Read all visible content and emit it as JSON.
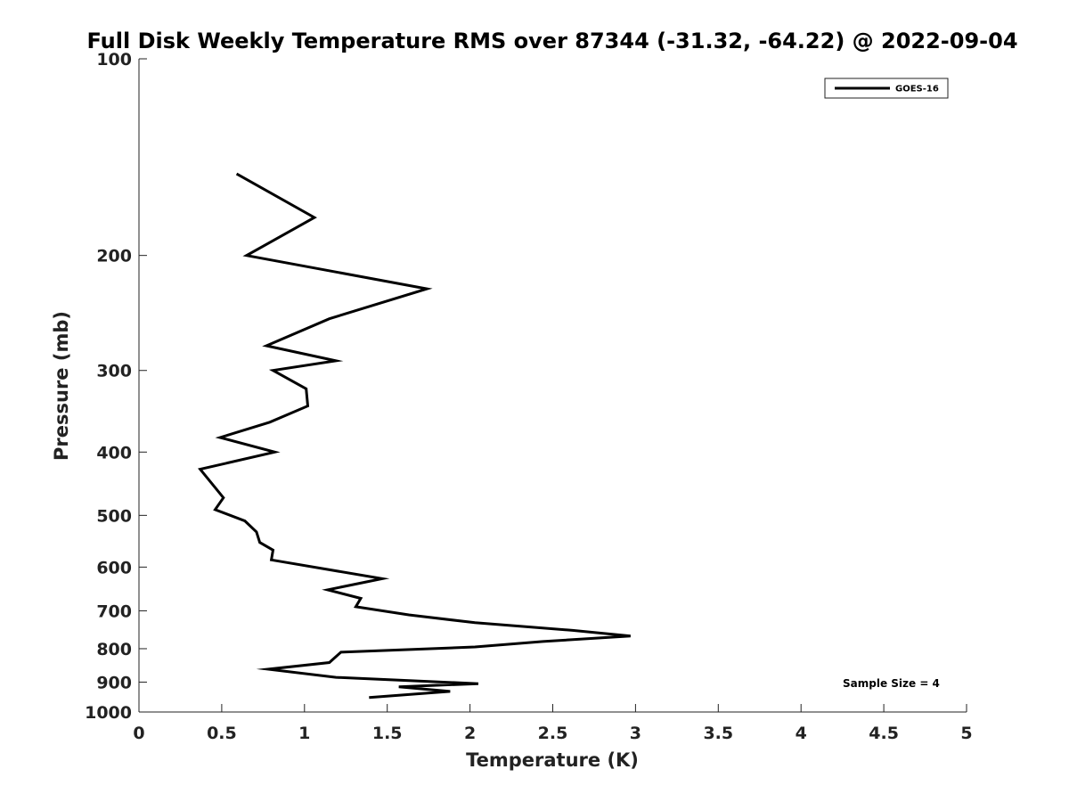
{
  "chart_data": {
    "type": "line",
    "title": "Full Disk Weekly Temperature RMS over 87344 (-31.32, -64.22) @ 2022-09-04",
    "xlabel": "Temperature (K)",
    "ylabel": "Pressure (mb)",
    "xlim": [
      0,
      5
    ],
    "ylim": [
      100,
      1000
    ],
    "y_scale": "log",
    "y_reversed": true,
    "grid": false,
    "legend_position": "top-right",
    "x_ticks": [
      "0",
      "0.5",
      "1",
      "1.5",
      "2",
      "2.5",
      "3",
      "3.5",
      "4",
      "4.5",
      "5"
    ],
    "y_ticks": [
      "100",
      "200",
      "300",
      "400",
      "500",
      "600",
      "700",
      "800",
      "900",
      "1000"
    ],
    "series": [
      {
        "name": "GOES-16",
        "color": "#000000",
        "points": [
          {
            "x": 0.59,
            "y": 150
          },
          {
            "x": 1.06,
            "y": 175
          },
          {
            "x": 0.65,
            "y": 200
          },
          {
            "x": 1.74,
            "y": 225
          },
          {
            "x": 1.15,
            "y": 250
          },
          {
            "x": 0.77,
            "y": 275
          },
          {
            "x": 1.19,
            "y": 290
          },
          {
            "x": 0.81,
            "y": 300
          },
          {
            "x": 1.01,
            "y": 320
          },
          {
            "x": 1.02,
            "y": 340
          },
          {
            "x": 0.79,
            "y": 360
          },
          {
            "x": 0.49,
            "y": 380
          },
          {
            "x": 0.82,
            "y": 400
          },
          {
            "x": 0.37,
            "y": 425
          },
          {
            "x": 0.45,
            "y": 450
          },
          {
            "x": 0.51,
            "y": 470
          },
          {
            "x": 0.46,
            "y": 490
          },
          {
            "x": 0.64,
            "y": 510
          },
          {
            "x": 0.71,
            "y": 530
          },
          {
            "x": 0.73,
            "y": 550
          },
          {
            "x": 0.81,
            "y": 565
          },
          {
            "x": 0.8,
            "y": 585
          },
          {
            "x": 1.47,
            "y": 625
          },
          {
            "x": 1.14,
            "y": 650
          },
          {
            "x": 1.34,
            "y": 670
          },
          {
            "x": 1.31,
            "y": 690
          },
          {
            "x": 1.63,
            "y": 710
          },
          {
            "x": 2.03,
            "y": 730
          },
          {
            "x": 2.62,
            "y": 750
          },
          {
            "x": 2.97,
            "y": 765
          },
          {
            "x": 2.44,
            "y": 780
          },
          {
            "x": 2.03,
            "y": 795
          },
          {
            "x": 1.22,
            "y": 810
          },
          {
            "x": 1.15,
            "y": 840
          },
          {
            "x": 0.78,
            "y": 860
          },
          {
            "x": 1.19,
            "y": 885
          },
          {
            "x": 2.05,
            "y": 905
          },
          {
            "x": 1.57,
            "y": 915
          },
          {
            "x": 1.88,
            "y": 930
          },
          {
            "x": 1.39,
            "y": 950
          }
        ]
      }
    ],
    "annotations": [
      "Sample Size = 4"
    ]
  }
}
